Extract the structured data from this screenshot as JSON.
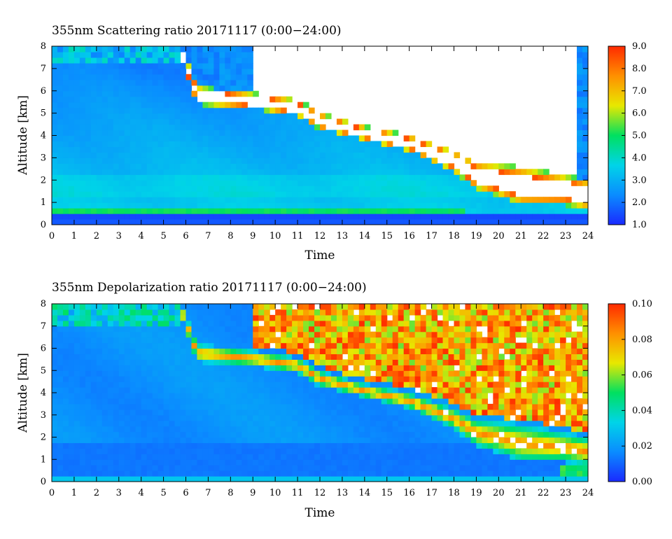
{
  "chart_data": [
    {
      "type": "heatmap",
      "title": "355nm Scattering ratio  20171117 (0:00−24:00)",
      "xlabel": "Time",
      "ylabel": "Altitude [km]",
      "xlim": [
        0,
        24
      ],
      "ylim": [
        0,
        8
      ],
      "x_ticks": [
        "0",
        "1",
        "2",
        "3",
        "4",
        "5",
        "6",
        "7",
        "8",
        "9",
        "10",
        "11",
        "12",
        "13",
        "14",
        "15",
        "16",
        "17",
        "18",
        "19",
        "20",
        "21",
        "22",
        "23",
        "24"
      ],
      "y_ticks": [
        "0",
        "1",
        "2",
        "3",
        "4",
        "5",
        "6",
        "7",
        "8"
      ],
      "colorbar": {
        "min": 1.0,
        "max": 9.0,
        "ticks": [
          "1.0",
          "2.0",
          "3.0",
          "4.0",
          "5.0",
          "6.0",
          "7.0",
          "8.0",
          "9.0"
        ],
        "colors": [
          "#1a2aff",
          "#0a8cff",
          "#00d4e8",
          "#00e060",
          "#e8e800",
          "#ff9000",
          "#ff2a00"
        ]
      },
      "features": {
        "cloud_top_km": [
          [
            5.8,
            8.0
          ],
          [
            6.5,
            6.2
          ],
          [
            9.0,
            5.9
          ],
          [
            11.0,
            5.6
          ],
          [
            12.0,
            5.0
          ],
          [
            14.0,
            4.4
          ],
          [
            16.0,
            4.0
          ],
          [
            18.0,
            3.3
          ],
          [
            19.0,
            2.8
          ],
          [
            20.0,
            2.7
          ],
          [
            21.0,
            2.6
          ],
          [
            22.0,
            2.4
          ],
          [
            23.0,
            2.2
          ],
          [
            24.0,
            2.0
          ]
        ],
        "cloud_base_km": [
          [
            5.8,
            7.4
          ],
          [
            6.5,
            5.4
          ],
          [
            9.0,
            5.2
          ],
          [
            11.0,
            4.9
          ],
          [
            12.0,
            4.3
          ],
          [
            14.0,
            3.8
          ],
          [
            16.0,
            3.3
          ],
          [
            18.0,
            2.4
          ],
          [
            19.0,
            1.6
          ],
          [
            20.0,
            1.3
          ],
          [
            21.0,
            0.9
          ],
          [
            22.0,
            0.9
          ],
          [
            23.0,
            0.9
          ],
          [
            24.0,
            0.7
          ]
        ],
        "boundary_layer_km": [
          0.4,
          0.8
        ]
      }
    },
    {
      "type": "heatmap",
      "title": "355nm Depolarization ratio  20171117 (0:00−24:00)",
      "xlabel": "Time",
      "ylabel": "Altitude [km]",
      "xlim": [
        0,
        24
      ],
      "ylim": [
        0,
        8
      ],
      "x_ticks": [
        "0",
        "1",
        "2",
        "3",
        "4",
        "5",
        "6",
        "7",
        "8",
        "9",
        "10",
        "11",
        "12",
        "13",
        "14",
        "15",
        "16",
        "17",
        "18",
        "19",
        "20",
        "21",
        "22",
        "23",
        "24"
      ],
      "y_ticks": [
        "0",
        "1",
        "2",
        "3",
        "4",
        "5",
        "6",
        "7",
        "8"
      ],
      "colorbar": {
        "min": 0.0,
        "max": 0.1,
        "ticks": [
          "0.00",
          "0.02",
          "0.04",
          "0.06",
          "0.08",
          "0.10"
        ],
        "colors": [
          "#1a2aff",
          "#0a8cff",
          "#00d4e8",
          "#00e060",
          "#e8e800",
          "#ff9000",
          "#ff2a00"
        ]
      },
      "features": {
        "cloud_top_km": [
          [
            5.8,
            8.0
          ],
          [
            6.5,
            6.2
          ],
          [
            9.0,
            5.9
          ],
          [
            11.0,
            5.6
          ],
          [
            12.0,
            5.0
          ],
          [
            14.0,
            4.4
          ],
          [
            16.0,
            4.0
          ],
          [
            18.0,
            3.3
          ],
          [
            19.0,
            2.8
          ],
          [
            20.0,
            2.7
          ],
          [
            21.0,
            2.6
          ],
          [
            22.0,
            2.4
          ],
          [
            23.0,
            2.2
          ],
          [
            24.0,
            2.0
          ]
        ],
        "cloud_base_km": [
          [
            5.8,
            7.4
          ],
          [
            6.5,
            5.4
          ],
          [
            9.0,
            5.2
          ],
          [
            11.0,
            4.9
          ],
          [
            12.0,
            4.3
          ],
          [
            14.0,
            3.8
          ],
          [
            16.0,
            3.3
          ],
          [
            18.0,
            2.4
          ],
          [
            19.0,
            1.6
          ],
          [
            20.0,
            1.3
          ],
          [
            21.0,
            0.9
          ],
          [
            22.0,
            0.9
          ],
          [
            23.0,
            0.9
          ],
          [
            24.0,
            0.7
          ]
        ],
        "noise_region_start_hour": 9.0
      }
    }
  ]
}
